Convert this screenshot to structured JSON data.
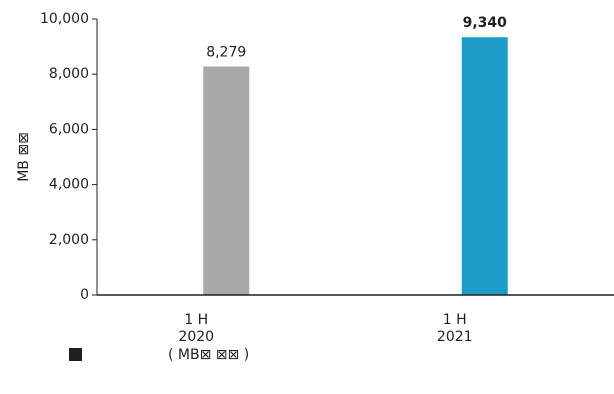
{
  "chart_data": {
    "type": "bar",
    "y_label": "MB ⊠⊠",
    "categories": [
      [
        "1  H",
        "2020"
      ],
      [
        "1  H",
        "2021"
      ]
    ],
    "series": [
      {
        "name": "( MB⊠  ⊠⊠ )",
        "color": "#231f20",
        "values": [
          8279,
          9340
        ],
        "value_labels": [
          "8,279",
          "9,340"
        ]
      }
    ],
    "bar_colors": [
      "#a7a9ac",
      "#1c9dc6"
    ],
    "bold_labels": [
      false,
      true
    ],
    "ylim": [
      0,
      10000
    ],
    "yticks": [
      0,
      {
        "value": 2000,
        "label": "2,000"
      },
      {
        "value": 4000,
        "label": "4,000"
      },
      {
        "value": 6000,
        "label": "6,000"
      },
      {
        "value": 8000,
        "label": "8,000"
      },
      {
        "value": 10000,
        "label": "10,000"
      }
    ]
  }
}
